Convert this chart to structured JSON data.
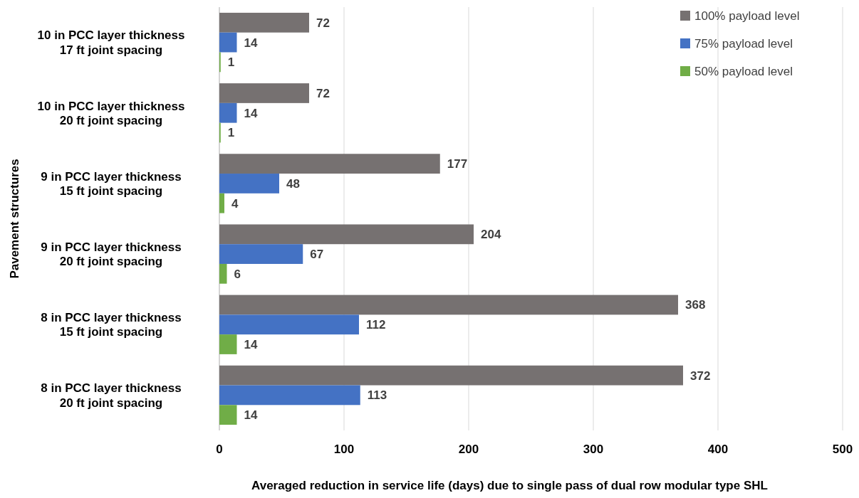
{
  "chart_data": {
    "type": "bar",
    "orientation": "horizontal",
    "xlabel": "Averaged reduction in service life (days) due to single pass of dual row modular type SHL",
    "ylabel": "Pavement structures",
    "categories": [
      "10 in PCC layer thickness\n17 ft joint spacing",
      "10 in PCC layer thickness\n20 ft joint spacing",
      "9 in PCC layer thickness\n15 ft joint spacing",
      "9 in PCC layer thickness\n20 ft joint spacing",
      "8 in PCC layer thickness\n15 ft joint spacing",
      "8 in PCC layer thickness\n20 ft joint spacing"
    ],
    "series": [
      {
        "name": "100% payload level",
        "color": "#767171",
        "values": [
          72,
          72,
          177,
          204,
          368,
          372
        ]
      },
      {
        "name": "75% payload level",
        "color": "#4472c4",
        "values": [
          14,
          14,
          48,
          67,
          112,
          113
        ]
      },
      {
        "name": "50% payload level",
        "color": "#70ad47",
        "values": [
          1,
          1,
          4,
          6,
          14,
          14
        ]
      }
    ],
    "xlim": [
      0,
      500
    ],
    "xticks": [
      0,
      100,
      200,
      300,
      400,
      500
    ],
    "grid": "x",
    "legend": "top right",
    "data_labels": true
  }
}
